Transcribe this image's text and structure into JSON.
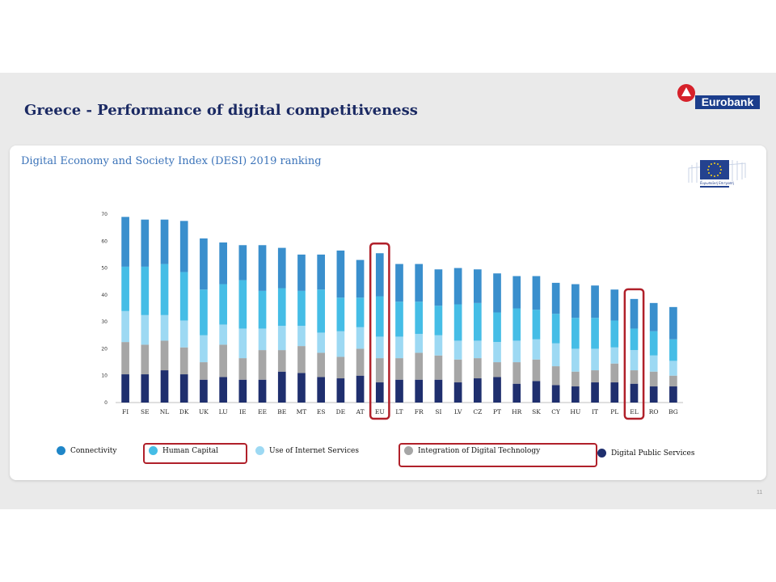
{
  "slide": {
    "title": "Greece - Performance of digital competitiveness",
    "logo_text": "Eurobank",
    "page_number": "11"
  },
  "chart_data": {
    "type": "bar",
    "stacked": true,
    "title": "Digital Economy and Society Index (DESI) 2019 ranking",
    "ylim": [
      0,
      70
    ],
    "yticks": [
      0,
      10,
      20,
      30,
      40,
      50,
      60,
      70
    ],
    "grid": false,
    "legend_position": "bottom",
    "categories": [
      "FI",
      "SE",
      "NL",
      "DK",
      "UK",
      "LU",
      "IE",
      "EE",
      "BE",
      "MT",
      "ES",
      "DE",
      "AT",
      "EU",
      "LT",
      "FR",
      "SI",
      "LV",
      "CZ",
      "PT",
      "HR",
      "SK",
      "CY",
      "HU",
      "IT",
      "PL",
      "EL",
      "RO",
      "BG"
    ],
    "highlighted_categories": [
      "EU",
      "EL"
    ],
    "series": [
      {
        "name": "Digital Public Services",
        "color": "#1f2f6e",
        "values": [
          10.5,
          10.5,
          12,
          10.5,
          8.5,
          9.5,
          8.5,
          8.5,
          11.5,
          11,
          9.5,
          9,
          10,
          7.5,
          8.5,
          8.5,
          8.5,
          7.5,
          9,
          9.5,
          7,
          8,
          6.5,
          6,
          7.5,
          7.5,
          7,
          6,
          6
        ]
      },
      {
        "name": "Integration of Digital Technology",
        "color": "#a6a6a6",
        "values": [
          12,
          11,
          11,
          10,
          6.5,
          12,
          8,
          11,
          8,
          10,
          9,
          8,
          10,
          9,
          8,
          10,
          9,
          8.5,
          7.5,
          5.5,
          8,
          8,
          7,
          5.5,
          4.5,
          7,
          5,
          5.5,
          4
        ]
      },
      {
        "name": "Use of Internet Services",
        "color": "#9dd9f3",
        "values": [
          11.5,
          11,
          9.5,
          10,
          10,
          7.5,
          11,
          8,
          9,
          7.5,
          7.5,
          9.5,
          8,
          8,
          8,
          7,
          7.5,
          7,
          6.5,
          7.5,
          8,
          7.5,
          8.5,
          8.5,
          8,
          6,
          7.5,
          6,
          5.5
        ]
      },
      {
        "name": "Human Capital",
        "color": "#45bde6",
        "values": [
          16.5,
          18,
          19,
          18,
          17,
          15,
          18,
          14,
          14,
          13,
          16,
          12.5,
          11,
          15,
          13,
          12,
          11,
          13.5,
          14,
          11,
          12,
          11,
          11,
          11.5,
          11.5,
          10,
          8,
          9,
          8
        ]
      },
      {
        "name": "Connectivity",
        "color": "#3a8fcd",
        "values": [
          18.5,
          17.5,
          16.5,
          19,
          19,
          15.5,
          13,
          17,
          15,
          13.5,
          13,
          17.5,
          14,
          16,
          14,
          14,
          13.5,
          13.5,
          12.5,
          14.5,
          12,
          12.5,
          11.5,
          12.5,
          12,
          11.5,
          11,
          10.5,
          12
        ]
      }
    ]
  },
  "legend": [
    {
      "label": "Connectivity",
      "color": "#1f86c8"
    },
    {
      "label": "Human Capital",
      "color": "#45bde6"
    },
    {
      "label": "Use of Internet Services",
      "color": "#9dd9f3"
    },
    {
      "label": "Integration of Digital Technology",
      "color": "#a6a6a6"
    },
    {
      "label": "Digital Public Services",
      "color": "#1f2f6e"
    }
  ],
  "eu_logo_text": "Ευρωπαϊκή Επιτροπή",
  "accent_color": "#b0202a"
}
